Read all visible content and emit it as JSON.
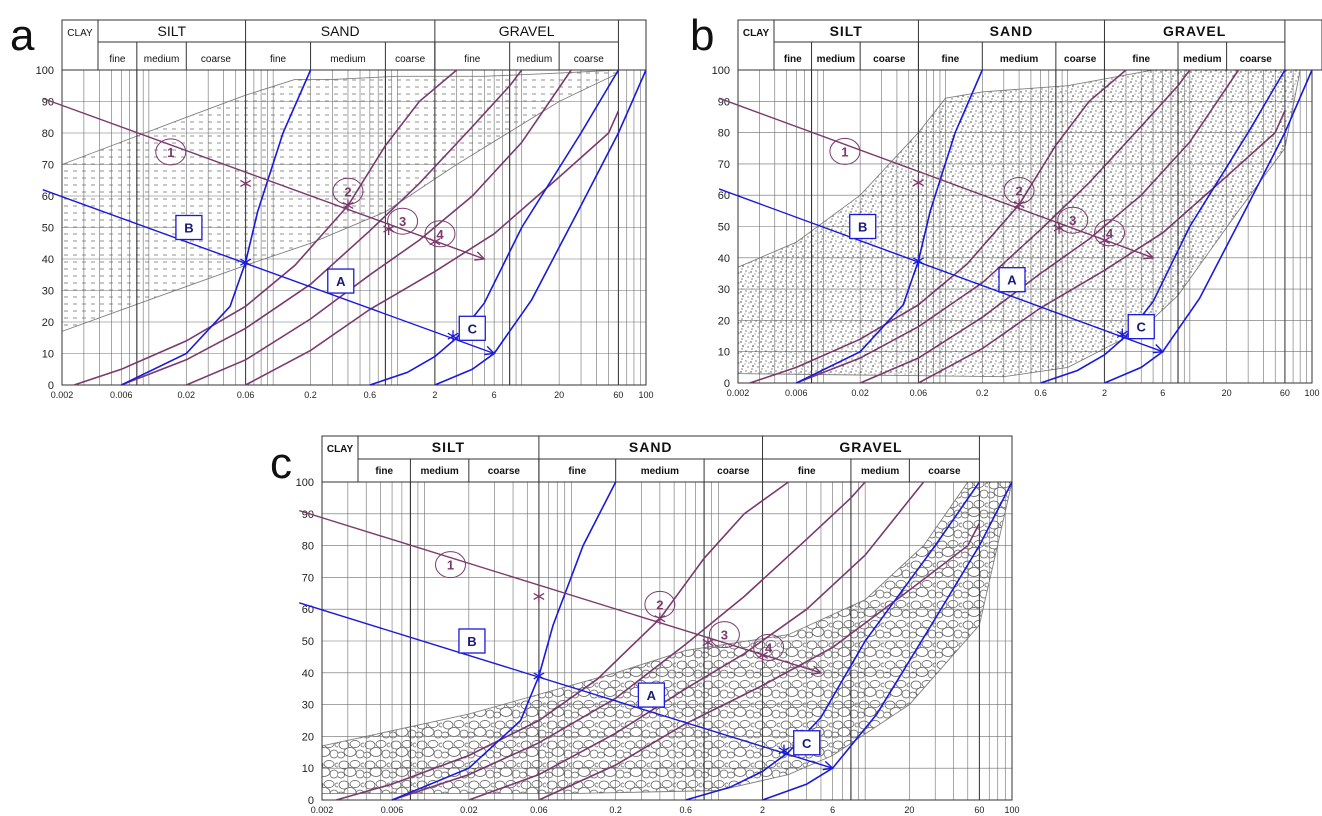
{
  "figure": {
    "panels": [
      {
        "id": "a",
        "letter": "a",
        "header": {
          "clay": "CLAY",
          "fractions": [
            "SILT",
            "SAND",
            "GRAVEL"
          ],
          "subfractions": [
            "fine",
            "medium",
            "coarse",
            "fine",
            "medium",
            "coarse",
            "fine",
            "medium",
            "coarse"
          ],
          "bold": false
        },
        "pattern": "dashes"
      },
      {
        "id": "b",
        "letter": "b",
        "header": {
          "clay": "CLAY",
          "fractions": [
            "SILT",
            "SAND",
            "GRAVEL"
          ],
          "subfractions": [
            "fine",
            "medium",
            "coarse",
            "fine",
            "medium",
            "coarse",
            "fine",
            "medium",
            "coarse"
          ],
          "bold": true
        },
        "pattern": "dots"
      },
      {
        "id": "c",
        "letter": "c",
        "header": {
          "clay": "CLAY",
          "fractions": [
            "SILT",
            "SAND",
            "GRAVEL"
          ],
          "subfractions": [
            "fine",
            "medium",
            "coarse",
            "fine",
            "medium",
            "coarse",
            "fine",
            "medium",
            "coarse"
          ],
          "bold": true
        },
        "pattern": "pebbles"
      }
    ],
    "x_ticks": [
      "0.002",
      "0.006",
      "0.02",
      "0.06",
      "0.2",
      "0.6",
      "2",
      "6",
      "20",
      "60",
      "100"
    ],
    "x_tick_values": [
      0.002,
      0.006,
      0.02,
      0.06,
      0.2,
      0.6,
      2,
      6,
      20,
      60,
      100
    ],
    "y_ticks": [
      "0",
      "10",
      "20",
      "30",
      "40",
      "50",
      "60",
      "70",
      "80",
      "90",
      "100"
    ],
    "x_range": [
      0.002,
      100
    ],
    "x_scale": "log",
    "y_range": [
      0,
      100
    ],
    "boundaries": {
      "clay_silt": 0.002,
      "silt_sand": 0.06,
      "sand_gravel": 2,
      "gravel_end": 60,
      "sub": [
        0.006,
        0.02,
        0.2,
        0.6,
        6,
        20
      ]
    },
    "colors": {
      "purple": "#7b3a6e",
      "blue": "#1a1adc",
      "grid": "#6e6e6e",
      "region": "#808080"
    },
    "purple_curves": [
      {
        "points": [
          [
            0.0025,
            0
          ],
          [
            0.006,
            5
          ],
          [
            0.02,
            14
          ],
          [
            0.06,
            25
          ],
          [
            0.15,
            38
          ],
          [
            0.4,
            57
          ],
          [
            0.8,
            76
          ],
          [
            1.5,
            90
          ],
          [
            3,
            100
          ]
        ]
      },
      {
        "points": [
          [
            0.006,
            0
          ],
          [
            0.02,
            8
          ],
          [
            0.06,
            18
          ],
          [
            0.2,
            32
          ],
          [
            0.6,
            49
          ],
          [
            1.5,
            64
          ],
          [
            4,
            82
          ],
          [
            8,
            95
          ],
          [
            10,
            100
          ]
        ]
      },
      {
        "points": [
          [
            0.02,
            0
          ],
          [
            0.06,
            8
          ],
          [
            0.2,
            21
          ],
          [
            0.6,
            35
          ],
          [
            1.5,
            46
          ],
          [
            4,
            60
          ],
          [
            10,
            77
          ],
          [
            25,
            100
          ]
        ]
      },
      {
        "points": [
          [
            0.06,
            0
          ],
          [
            0.2,
            11
          ],
          [
            0.6,
            24
          ],
          [
            2,
            36
          ],
          [
            6,
            48
          ],
          [
            20,
            66
          ],
          [
            50,
            80
          ],
          [
            60,
            87
          ]
        ]
      }
    ],
    "blue_curves": [
      {
        "points": [
          [
            0.006,
            0
          ],
          [
            0.02,
            10
          ],
          [
            0.045,
            25
          ],
          [
            0.06,
            39
          ],
          [
            0.075,
            55
          ],
          [
            0.12,
            80
          ],
          [
            0.2,
            100
          ]
        ]
      },
      {
        "points": [
          [
            0.6,
            0
          ],
          [
            1.2,
            4
          ],
          [
            2,
            9
          ],
          [
            3,
            15
          ],
          [
            5,
            26
          ],
          [
            10,
            50
          ],
          [
            30,
            80
          ],
          [
            60,
            100
          ]
        ]
      },
      {
        "points": [
          [
            2,
            0
          ],
          [
            4,
            5
          ],
          [
            6,
            10
          ],
          [
            12,
            27
          ],
          [
            30,
            57
          ],
          [
            60,
            80
          ],
          [
            100,
            100
          ]
        ]
      }
    ],
    "line_1": {
      "from": [
        0.0014,
        91
      ],
      "to": [
        5,
        40
      ]
    },
    "line_2": {
      "from": [
        0.0014,
        62
      ],
      "to": [
        6,
        10
      ]
    },
    "intersections_purple": [
      [
        0.06,
        64
      ],
      [
        0.4,
        57
      ],
      [
        0.85,
        49.5
      ],
      [
        2,
        45.5
      ]
    ],
    "intersections_blue": [
      [
        0.06,
        39
      ],
      [
        2.8,
        15.5
      ]
    ],
    "region_outline": {
      "a": [
        [
          0.002,
          70
        ],
        [
          0.02,
          85
        ],
        [
          0.06,
          92
        ],
        [
          0.15,
          97
        ],
        [
          0.3,
          97
        ],
        [
          1,
          98
        ],
        [
          5,
          98
        ],
        [
          20,
          99
        ],
        [
          60,
          100
        ],
        [
          60,
          99
        ],
        [
          20,
          90
        ],
        [
          3,
          70
        ],
        [
          0.8,
          55
        ],
        [
          0.2,
          45
        ],
        [
          0.06,
          38
        ],
        [
          0.01,
          27
        ],
        [
          0.002,
          17
        ]
      ],
      "b": [
        [
          0.002,
          37
        ],
        [
          0.006,
          45
        ],
        [
          0.02,
          60
        ],
        [
          0.06,
          80
        ],
        [
          0.1,
          91
        ],
        [
          0.2,
          93
        ],
        [
          1,
          95
        ],
        [
          5,
          100
        ],
        [
          80,
          100
        ],
        [
          60,
          75
        ],
        [
          25,
          55
        ],
        [
          8,
          28
        ],
        [
          4,
          17
        ],
        [
          1,
          5
        ],
        [
          0.3,
          2
        ],
        [
          0.002,
          3
        ]
      ],
      "c": [
        [
          0.002,
          17
        ],
        [
          0.02,
          27
        ],
        [
          0.2,
          40
        ],
        [
          0.6,
          47
        ],
        [
          3,
          52
        ],
        [
          10,
          63
        ],
        [
          25,
          80
        ],
        [
          50,
          100
        ],
        [
          100,
          100
        ],
        [
          60,
          55
        ],
        [
          20,
          30
        ],
        [
          6,
          14
        ],
        [
          3,
          8
        ],
        [
          1,
          3
        ],
        [
          0.1,
          2
        ],
        [
          0.002,
          2
        ]
      ]
    },
    "labels_purple": [
      "1",
      "2",
      "3",
      "4"
    ],
    "label_positions_purple": [
      [
        0.015,
        74
      ],
      [
        0.4,
        61.5
      ],
      [
        1.1,
        52
      ],
      [
        2.2,
        48
      ]
    ],
    "labels_blue": [
      "A",
      "B",
      "C"
    ],
    "label_positions_blue": [
      [
        0.35,
        33
      ],
      [
        0.021,
        50
      ],
      [
        4,
        18
      ]
    ]
  }
}
